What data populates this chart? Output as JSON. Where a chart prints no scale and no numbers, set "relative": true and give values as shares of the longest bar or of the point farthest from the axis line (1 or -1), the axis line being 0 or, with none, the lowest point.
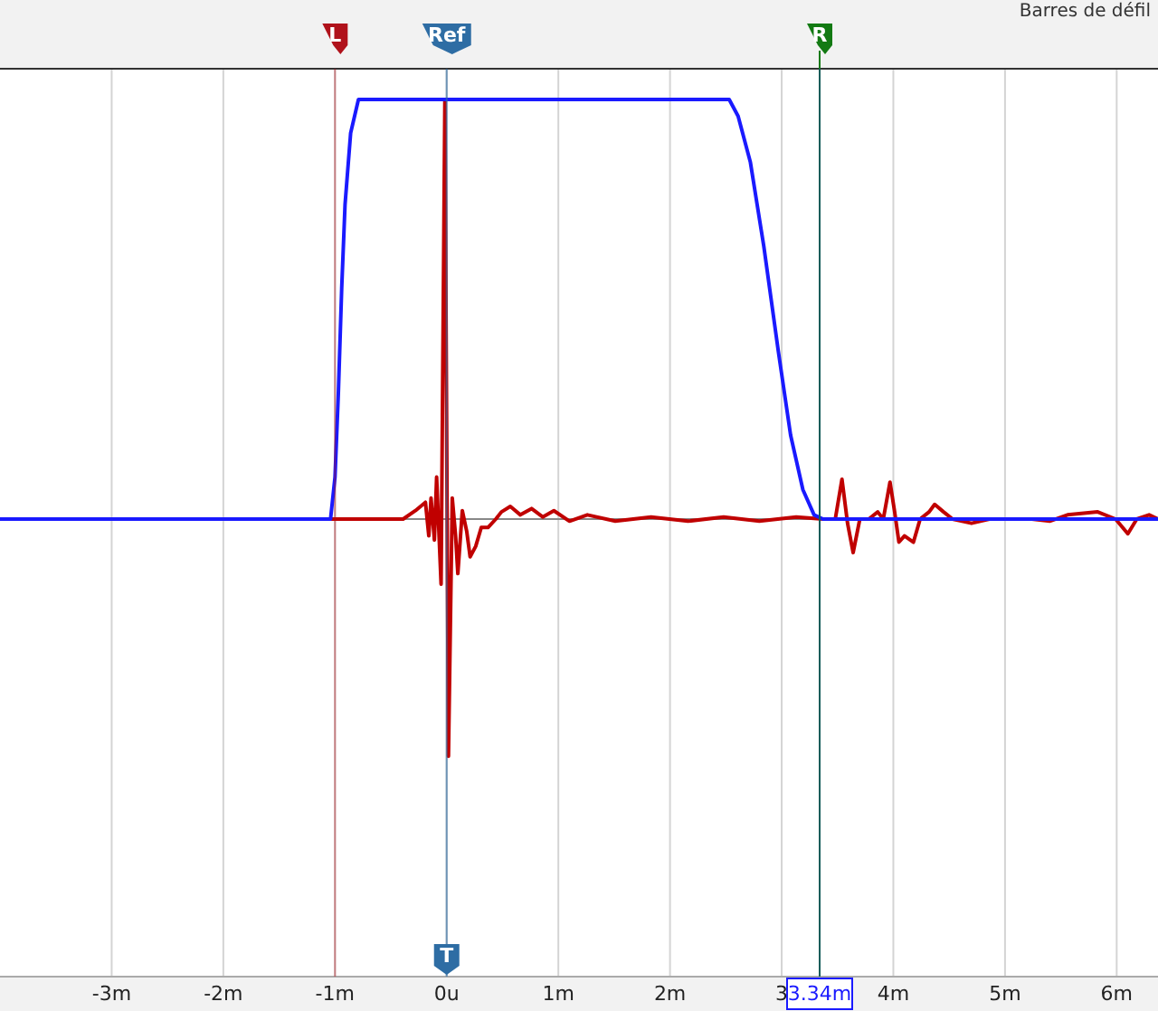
{
  "chart_data": {
    "type": "line",
    "relative": true,
    "grid": "x",
    "line_style": "solid",
    "xlim": [
      -4,
      6.37
    ],
    "xticks": [
      {
        "value": -3,
        "label": "-3m"
      },
      {
        "value": -2,
        "label": "-2m"
      },
      {
        "value": -1,
        "label": "-1m"
      },
      {
        "value": 0,
        "label": "0u"
      },
      {
        "value": 1,
        "label": "1m"
      },
      {
        "value": 2,
        "label": "2m"
      },
      {
        "value": 3,
        "label": "3"
      },
      {
        "value": 4,
        "label": "4m"
      },
      {
        "value": 5,
        "label": "5m"
      },
      {
        "value": 6,
        "label": "6m"
      }
    ],
    "series": [
      {
        "color": "#c00000",
        "x": [
          -4,
          -0.39,
          -0.28,
          -0.19,
          -0.16,
          -0.14,
          -0.11,
          -0.09,
          -0.05,
          -0.016,
          0.016,
          0.05,
          0.08,
          0.1,
          0.14,
          0.18,
          0.21,
          0.26,
          0.31,
          0.37,
          0.44,
          0.49,
          0.57,
          0.66,
          0.76,
          0.86,
          0.96,
          1.1,
          1.26,
          1.51,
          1.83,
          2.16,
          2.48,
          2.8,
          3.13,
          3.37,
          3.48,
          3.54,
          3.59,
          3.64,
          3.7,
          3.78,
          3.86,
          3.91,
          3.97,
          4.01,
          4.05,
          4.1,
          4.18,
          4.24,
          4.32,
          4.37,
          4.45,
          4.53,
          4.7,
          4.86,
          5.02,
          5.24,
          5.4,
          5.56,
          5.83,
          5.99,
          6.1,
          6.18,
          6.29,
          6.37
        ],
        "values": [
          0,
          0,
          0.02,
          0.04,
          -0.04,
          0.05,
          -0.05,
          0.1,
          -0.155,
          1,
          -0.565,
          0.05,
          -0.04,
          -0.13,
          0.02,
          -0.03,
          -0.09,
          -0.065,
          -0.02,
          -0.02,
          0,
          0.017,
          0.03,
          0.01,
          0.025,
          0.005,
          0.02,
          -0.005,
          0.01,
          -0.005,
          0.005,
          -0.005,
          0.005,
          -0.005,
          0.005,
          0,
          0,
          0.095,
          -0.01,
          -0.08,
          0,
          0,
          0.017,
          0,
          0.088,
          0.02,
          -0.055,
          -0.04,
          -0.055,
          0,
          0.017,
          0.035,
          0.017,
          0,
          -0.01,
          0,
          0,
          0,
          -0.005,
          0.01,
          0.017,
          0,
          -0.035,
          0,
          0.01,
          0
        ]
      },
      {
        "color": "#1a1aff",
        "x": [
          -4,
          -1.04,
          -1.0,
          -0.97,
          -0.94,
          -0.91,
          -0.86,
          -0.79,
          2.53,
          2.61,
          2.72,
          2.84,
          2.97,
          3.08,
          3.19,
          3.29,
          3.37,
          6.37
        ],
        "values": [
          0,
          0,
          0.1,
          0.3,
          0.55,
          0.75,
          0.92,
          1,
          1,
          0.96,
          0.85,
          0.65,
          0.4,
          0.2,
          0.07,
          0.01,
          0,
          0
        ]
      }
    ],
    "ref_lines": [
      {
        "axis": "x",
        "value": -1,
        "label": "L",
        "color": "#b0121b"
      },
      {
        "axis": "x",
        "value": 0,
        "label": "Ref",
        "color": "#2e6da4"
      },
      {
        "axis": "x",
        "value": 3.34,
        "label": "R",
        "color": "#137a13",
        "line_style": "solid"
      },
      {
        "axis": "x",
        "value": 0,
        "label": "T",
        "color": "#2e6da4"
      },
      {
        "axis": "x",
        "value": 3.34,
        "label": "3.34m",
        "color": "#1a1aff"
      }
    ],
    "annotations": [
      "Barres de défil"
    ]
  }
}
